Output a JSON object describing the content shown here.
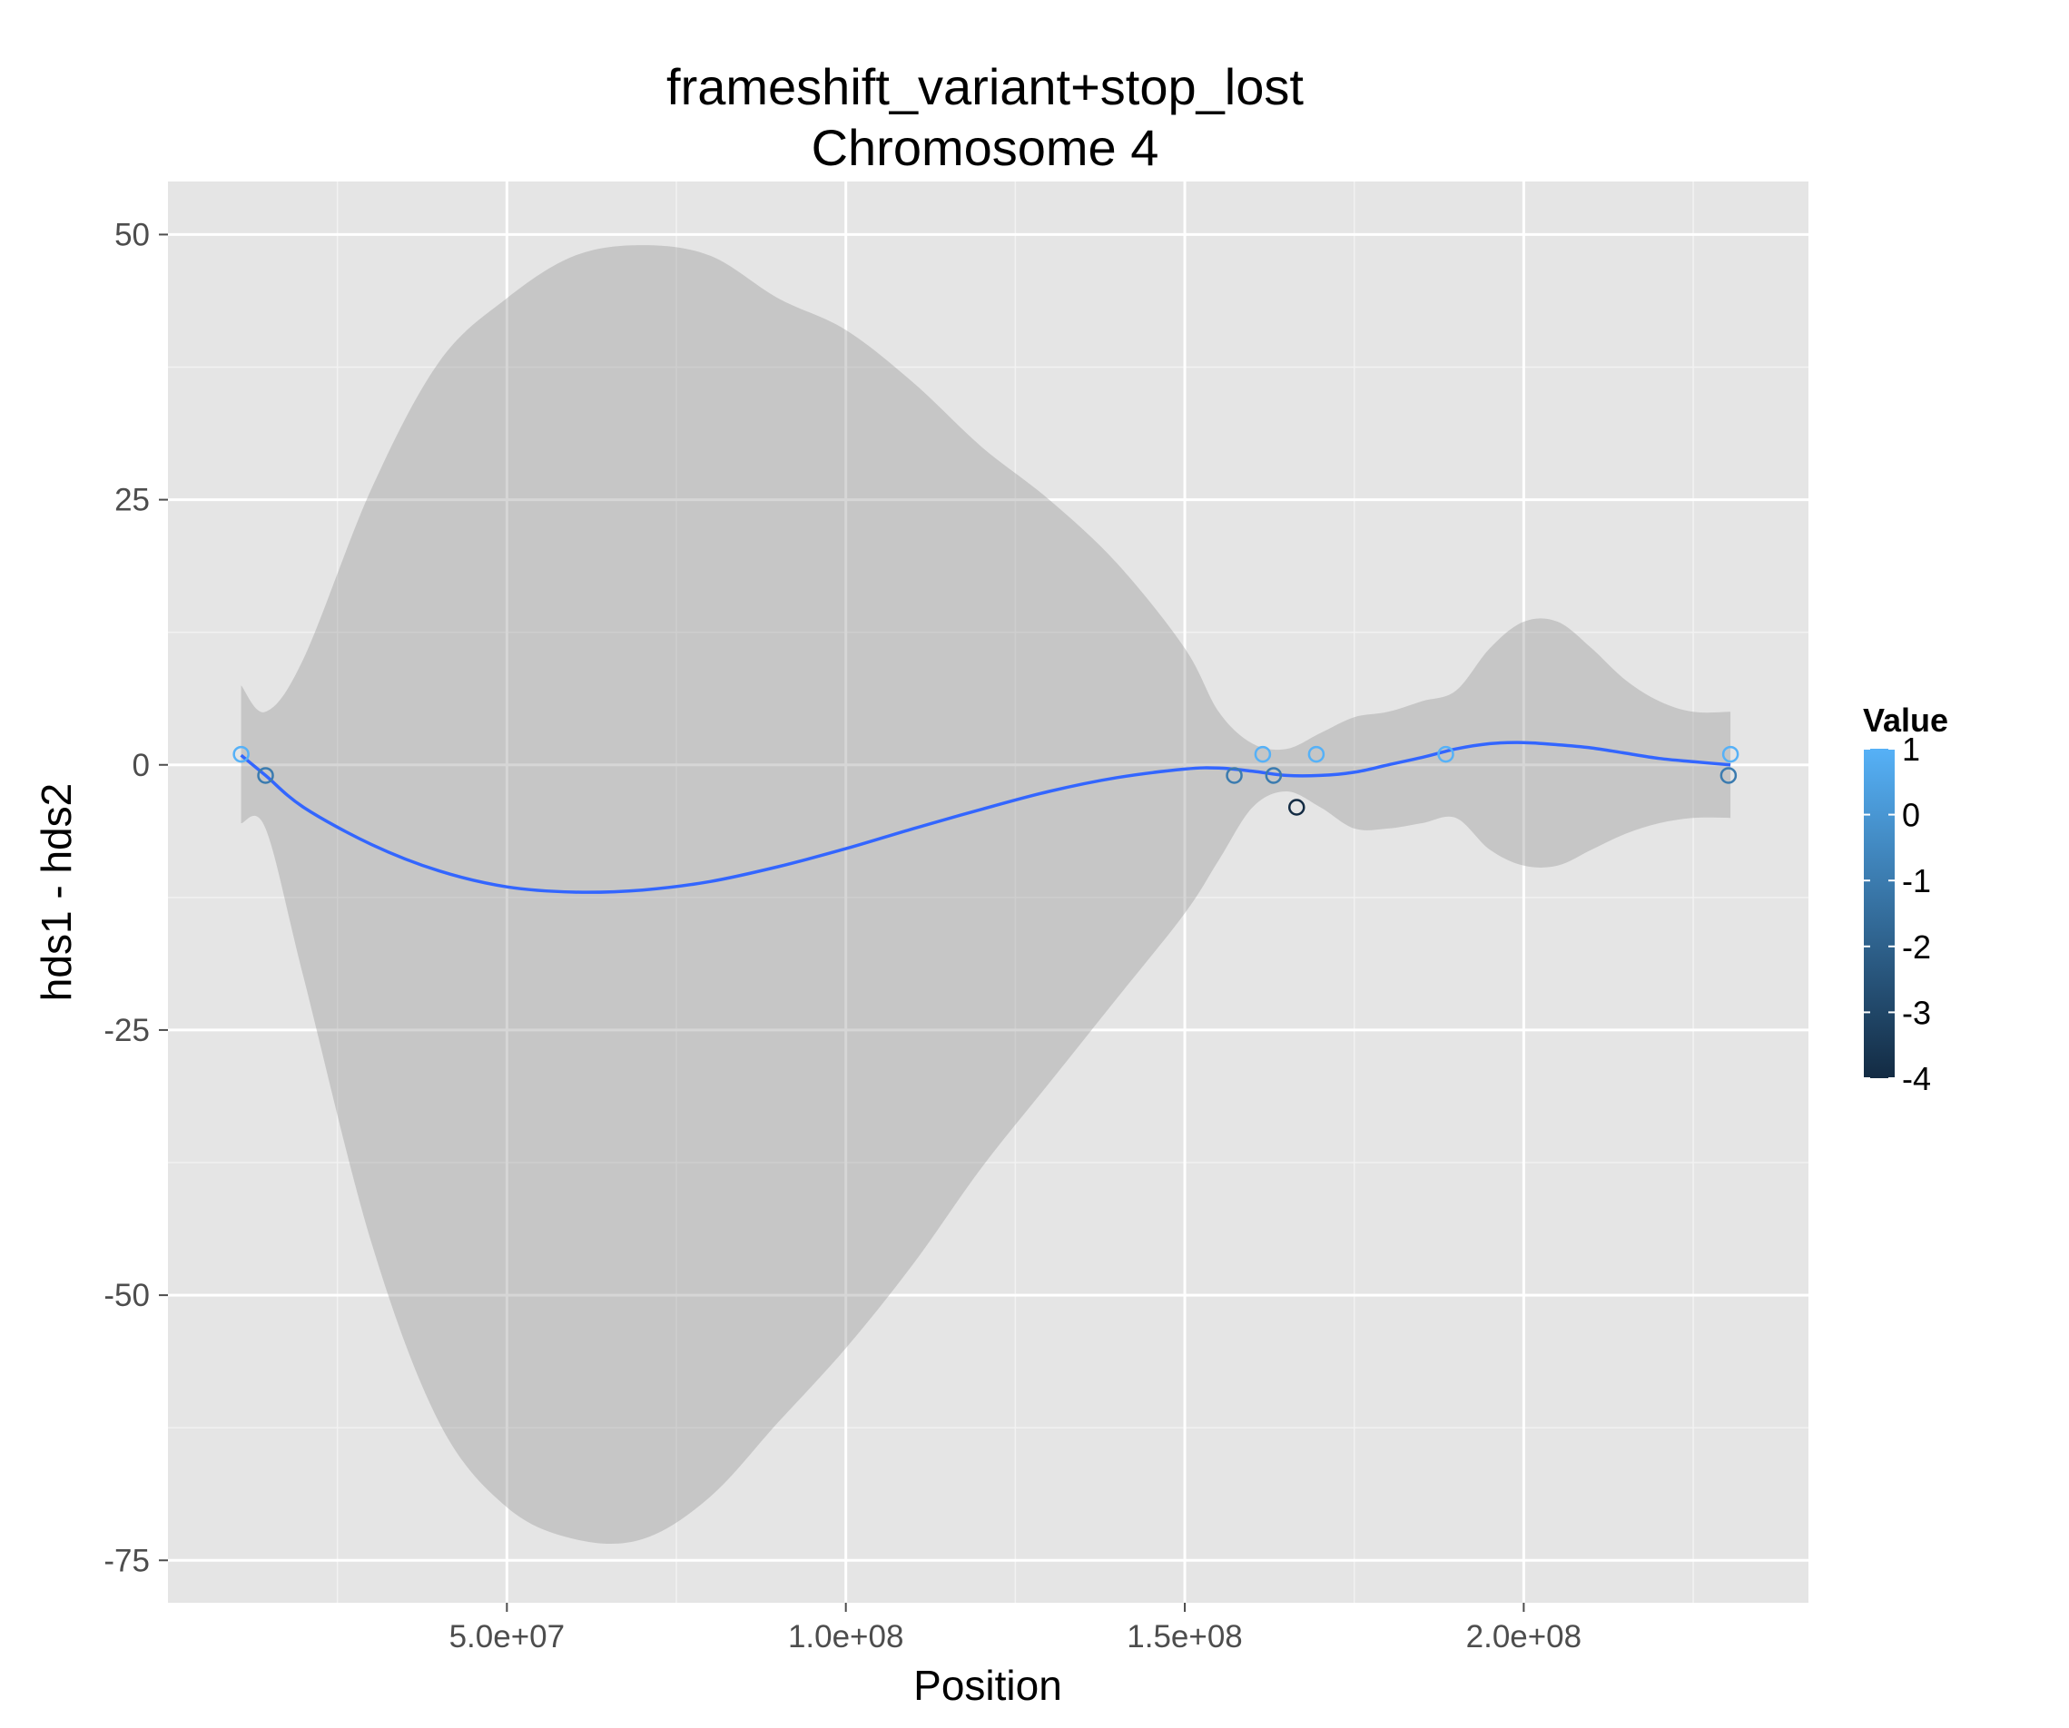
{
  "chart_data": {
    "type": "scatter",
    "title": "frameshift_variant+stop_lost",
    "subtitle": "Chromosome 4",
    "xlabel": "Position",
    "ylabel": "hds1 - hds2",
    "xlim": [
      0,
      242000000
    ],
    "ylim": [
      -79,
      55
    ],
    "x_ticks": [
      50000000,
      100000000,
      150000000,
      200000000
    ],
    "x_tick_labels": [
      "5.0e+07",
      "1.0e+08",
      "1.5e+08",
      "2.0e+08"
    ],
    "y_ticks": [
      50,
      25,
      0,
      -25,
      -50,
      -75
    ],
    "y_tick_labels": [
      "50",
      "25",
      "0",
      "-25",
      "-50",
      "-75"
    ],
    "grid": true,
    "legend": {
      "title": "Value",
      "position": "right",
      "type": "colorbar",
      "range": [
        -4,
        1
      ],
      "breaks": [
        1,
        0,
        -1,
        -2,
        -3,
        -4
      ],
      "break_labels": [
        "1",
        "0",
        "-1",
        "-2",
        "-3",
        "-4"
      ],
      "low_color": "#132b43",
      "high_color": "#56b1f7"
    },
    "points": [
      {
        "x": 10800000,
        "y": 1
      },
      {
        "x": 14400000,
        "y": -1
      },
      {
        "x": 157300000,
        "y": -1
      },
      {
        "x": 161500000,
        "y": 1
      },
      {
        "x": 163100000,
        "y": -1
      },
      {
        "x": 166500000,
        "y": -4
      },
      {
        "x": 169400000,
        "y": 1
      },
      {
        "x": 188500000,
        "y": 1
      },
      {
        "x": 230200000,
        "y": -1
      },
      {
        "x": 230500000,
        "y": 1
      }
    ],
    "smooth": {
      "color": "#3366ff",
      "x": [
        10800000,
        14400000,
        20000000,
        30000000,
        40000000,
        50000000,
        60000000,
        70000000,
        80000000,
        90000000,
        100000000,
        110000000,
        120000000,
        130000000,
        140000000,
        150000000,
        155000000,
        160000000,
        165000000,
        170000000,
        175000000,
        180000000,
        185000000,
        190000000,
        195000000,
        200000000,
        205000000,
        210000000,
        215000000,
        220000000,
        225000000,
        230500000
      ],
      "y": [
        0.9,
        -1,
        -4,
        -7.5,
        -10,
        -11.5,
        -12,
        -11.8,
        -11,
        -9.6,
        -7.9,
        -6,
        -4.2,
        -2.5,
        -1.2,
        -0.4,
        -0.3,
        -0.6,
        -1,
        -1,
        -0.7,
        0,
        0.7,
        1.5,
        2,
        2.1,
        1.9,
        1.6,
        1.1,
        0.6,
        0.3,
        0
      ],
      "upper": [
        7.5,
        5,
        10,
        26,
        38,
        44,
        48,
        49,
        48,
        44,
        41,
        36,
        30,
        25,
        19,
        11,
        5,
        2,
        1.5,
        3,
        4.5,
        5,
        6,
        7,
        11,
        13.5,
        13.5,
        11,
        8,
        6,
        5,
        5
      ],
      "lower": [
        -5.5,
        -6,
        -20,
        -45,
        -62,
        -70,
        -73,
        -73,
        -69,
        -62,
        -55,
        -47,
        -38,
        -30,
        -22,
        -14,
        -9,
        -4,
        -2.5,
        -4,
        -6,
        -6,
        -5.5,
        -5,
        -8,
        -9.5,
        -9.5,
        -8,
        -6.5,
        -5.5,
        -5,
        -5
      ]
    }
  }
}
